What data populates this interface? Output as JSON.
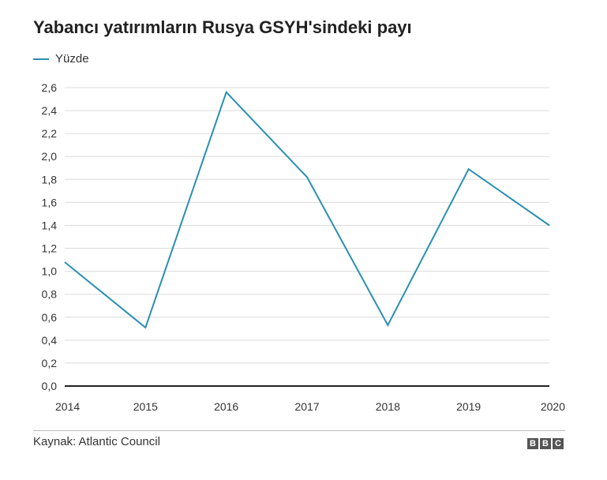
{
  "header": {
    "title": "Yabancı yatırımların Rusya GSYH'sindeki payı"
  },
  "legend": {
    "label": "Yüzde",
    "color": "#2a8fb3"
  },
  "footer": {
    "source": "Kaynak: Atlantic Council",
    "logo_letters": [
      "B",
      "B",
      "C"
    ]
  },
  "chart_data": {
    "type": "line",
    "title": "Yabancı yatırımların Rusya GSYH'sindeki payı",
    "xlabel": "",
    "ylabel": "",
    "x": [
      2014,
      2015,
      2016,
      2017,
      2018,
      2019,
      2020
    ],
    "x_tick_labels": [
      "2014",
      "2015",
      "2016",
      "2017",
      "2018",
      "2019",
      "2020"
    ],
    "series": [
      {
        "name": "Yüzde",
        "values": [
          1.08,
          0.51,
          2.56,
          1.82,
          0.53,
          1.89,
          1.4
        ],
        "color": "#2a8fb3"
      }
    ],
    "ylim": [
      0,
      2.6
    ],
    "y_ticks": [
      0,
      0.2,
      0.4,
      0.6,
      0.8,
      1.0,
      1.2,
      1.4,
      1.6,
      1.8,
      2.0,
      2.2,
      2.4,
      2.6
    ],
    "y_tick_labels": [
      "0,0",
      "0,2",
      "0,4",
      "0,6",
      "0,8",
      "1,0",
      "1,2",
      "1,4",
      "1,6",
      "1,8",
      "2,0",
      "2,2",
      "2,4",
      "2,6"
    ],
    "grid": true,
    "legend_position": "top-left"
  }
}
